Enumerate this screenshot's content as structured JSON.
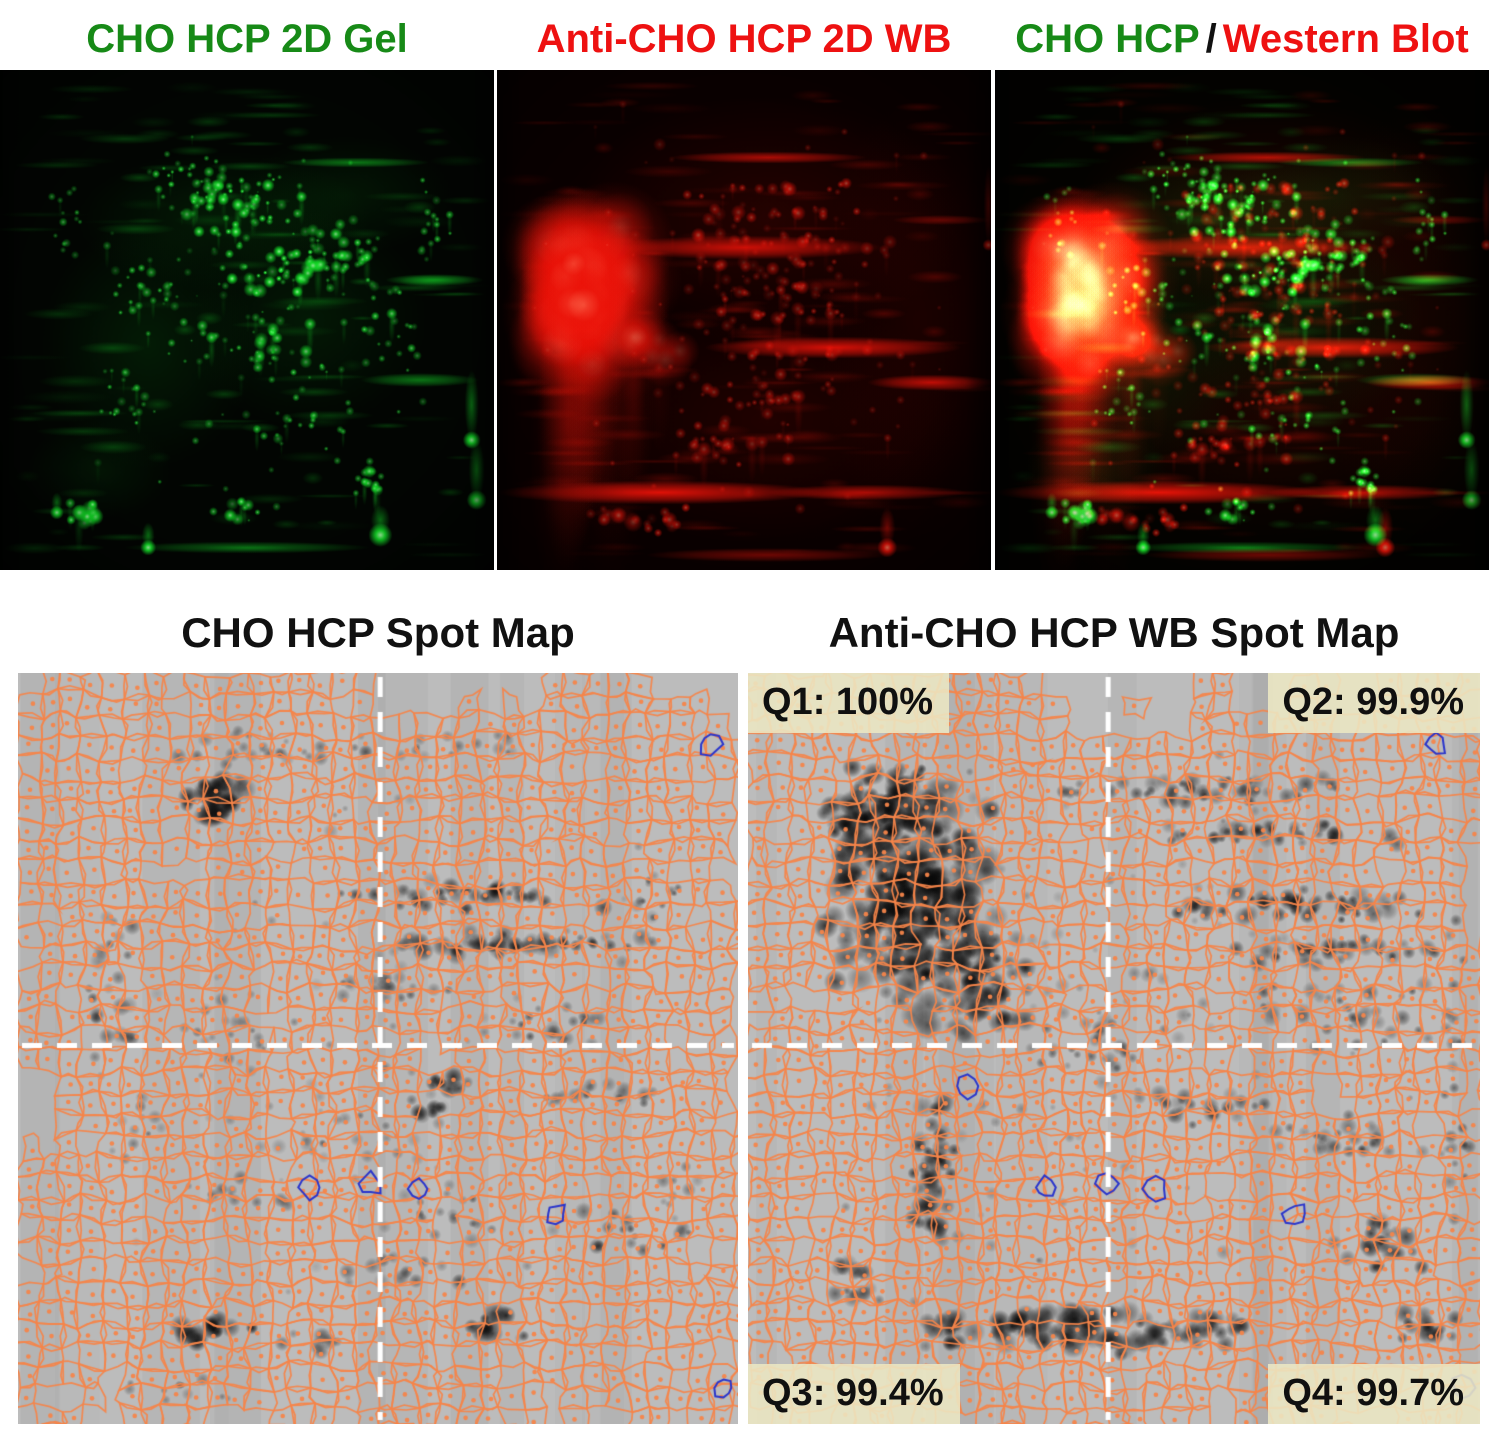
{
  "figure": {
    "panels": {
      "gel": {
        "title": "CHO HCP 2D Gel"
      },
      "wb": {
        "title": "Anti-CHO HCP 2D WB"
      },
      "overlay": {
        "title_gel": "CHO HCP",
        "title_sep": "/",
        "title_wb": "Western Blot"
      }
    },
    "maps": {
      "gel_map": {
        "title": "CHO HCP Spot Map"
      },
      "wb_map": {
        "title": "Anti-CHO HCP WB Spot Map",
        "q1": "Q1: 100%",
        "q2": "Q2: 99.9%",
        "q3": "Q3: 99.4%",
        "q4": "Q4: 99.7%"
      }
    },
    "colors": {
      "gel_title_green": "#178a17",
      "wb_title_red": "#ee1111",
      "separator_black": "#111111",
      "map_title_black": "#111111",
      "quadrant_text": "#101010",
      "quadrant_box_bg": "#ece7c3",
      "spot_outline_orange": "#f5854a",
      "unmatched_spot_blue": "#2a35cc",
      "crosshair_white": "#ffffff",
      "map_background_gray": "#bcbcbc",
      "gel_fluor_green": "#00e028",
      "wb_fluor_red": "#ff1e0a"
    }
  }
}
